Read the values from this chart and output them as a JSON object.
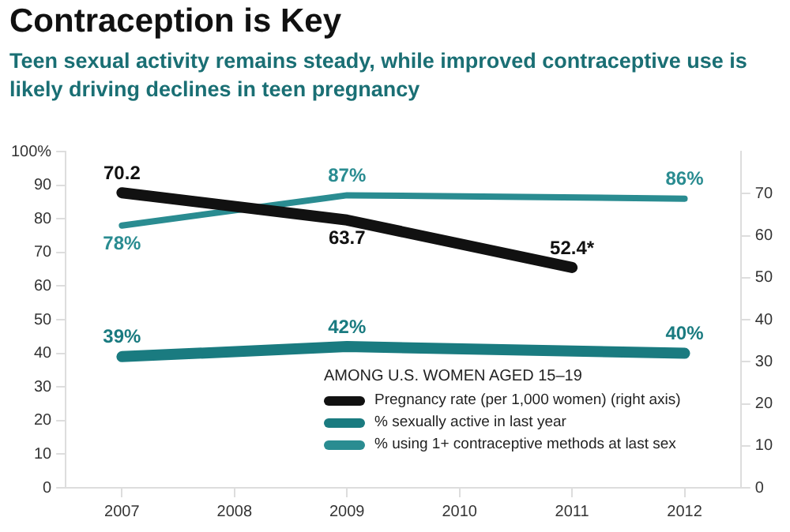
{
  "chart_data": {
    "type": "line",
    "title": "Contraception is Key",
    "subtitle": "Teen sexual activity remains steady, while improved contraceptive use is likely driving declines in teen pregnancy",
    "legend_title": "AMONG U.S. WOMEN AGED 15–19",
    "series": [
      {
        "name": "Pregnancy rate (per 1,000 women) (right axis)",
        "color": "#111111",
        "axis": "y2",
        "x": [
          2007,
          2009,
          2011
        ],
        "values": [
          70.2,
          63.7,
          52.4
        ],
        "value_labels": [
          "70.2",
          "63.7",
          "52.4*"
        ]
      },
      {
        "name": "% sexually active in last year",
        "color": "#1a7b80",
        "x": [
          2007,
          2009,
          2012
        ],
        "values": [
          39,
          42,
          40
        ],
        "value_labels": [
          "39%",
          "42%",
          "40%"
        ]
      },
      {
        "name": "% using 1+ contraceptive methods at last sex",
        "color": "#2a8c91",
        "x": [
          2007,
          2009,
          2012
        ],
        "values": [
          78,
          87,
          86
        ],
        "value_labels": [
          "78%",
          "87%",
          "86%"
        ]
      }
    ],
    "xlim": [
      2006.5,
      2012.5
    ],
    "xticks": [
      2007,
      2008,
      2009,
      2010,
      2011,
      2012
    ],
    "ylim": [
      0,
      100
    ],
    "yticks": [
      0,
      10,
      20,
      30,
      40,
      50,
      60,
      70,
      80,
      90,
      {
        "value": 100,
        "label": "100%"
      }
    ],
    "y2lim": [
      0,
      80
    ],
    "y2ticks": [
      0,
      10,
      20,
      30,
      40,
      50,
      60,
      70
    ],
    "grid": false,
    "legend": "bottom",
    "marker": "none",
    "line_style": "solid"
  }
}
